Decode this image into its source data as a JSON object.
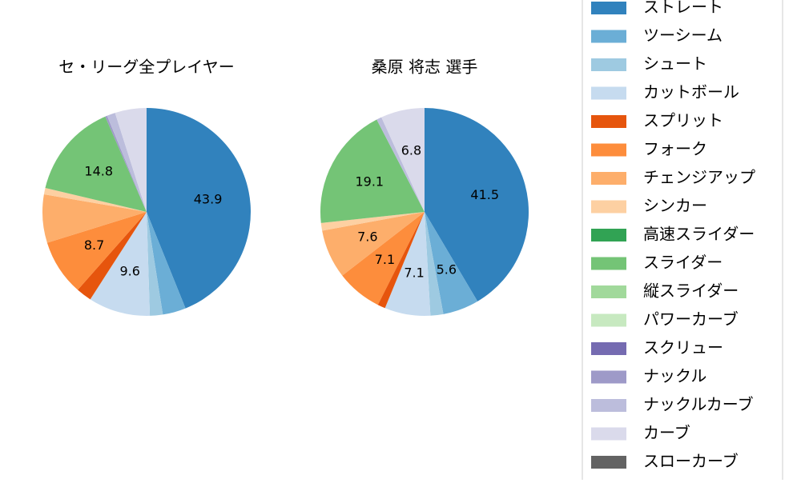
{
  "chart_data": [
    {
      "type": "pie",
      "title": "セ・リーグ全プレイヤー",
      "categories": [
        "ストレート",
        "ツーシーム",
        "シュート",
        "カットボール",
        "スプリット",
        "フォーク",
        "チェンジアップ",
        "シンカー",
        "高速スライダー",
        "スライダー",
        "縦スライダー",
        "パワーカーブ",
        "スクリュー",
        "ナックル",
        "ナックルカーブ",
        "カーブ",
        "スローカーブ"
      ],
      "colors": [
        "#3182bd",
        "#6baed6",
        "#9ecae1",
        "#c6dbef",
        "#e6550d",
        "#fd8d3c",
        "#fdae6b",
        "#fdd0a2",
        "#31a354",
        "#74c476",
        "#a1d99b",
        "#c7e9c0",
        "#756bb1",
        "#9e9ac8",
        "#bcbddc",
        "#dadaeb",
        "#636363"
      ],
      "values": [
        43.9,
        3.6,
        2.0,
        9.6,
        2.4,
        8.7,
        7.5,
        1.0,
        0,
        14.8,
        0,
        0,
        0,
        0.3,
        1.3,
        4.9,
        0
      ],
      "value_labels": [
        "43.9",
        null,
        null,
        "9.6",
        null,
        "8.7",
        null,
        null,
        null,
        "14.8",
        null,
        null,
        null,
        null,
        null,
        null,
        null
      ]
    },
    {
      "type": "pie",
      "title": "桑原 将志  選手",
      "categories": [
        "ストレート",
        "ツーシーム",
        "シュート",
        "カットボール",
        "スプリット",
        "フォーク",
        "チェンジアップ",
        "シンカー",
        "高速スライダー",
        "スライダー",
        "縦スライダー",
        "パワーカーブ",
        "スクリュー",
        "ナックル",
        "ナックルカーブ",
        "カーブ",
        "スローカーブ"
      ],
      "colors": [
        "#3182bd",
        "#6baed6",
        "#9ecae1",
        "#c6dbef",
        "#e6550d",
        "#fd8d3c",
        "#fdae6b",
        "#fdd0a2",
        "#31a354",
        "#74c476",
        "#a1d99b",
        "#c7e9c0",
        "#756bb1",
        "#9e9ac8",
        "#bcbddc",
        "#dadaeb",
        "#636363"
      ],
      "values": [
        41.5,
        5.6,
        2.0,
        7.1,
        1.2,
        7.1,
        7.6,
        1.2,
        0,
        19.1,
        0,
        0,
        0,
        0,
        0.8,
        6.8,
        0
      ],
      "value_labels": [
        "41.5",
        "5.6",
        null,
        "7.1",
        null,
        "7.1",
        "7.6",
        null,
        null,
        "19.1",
        null,
        null,
        null,
        null,
        null,
        "6.8",
        null
      ]
    }
  ]
}
